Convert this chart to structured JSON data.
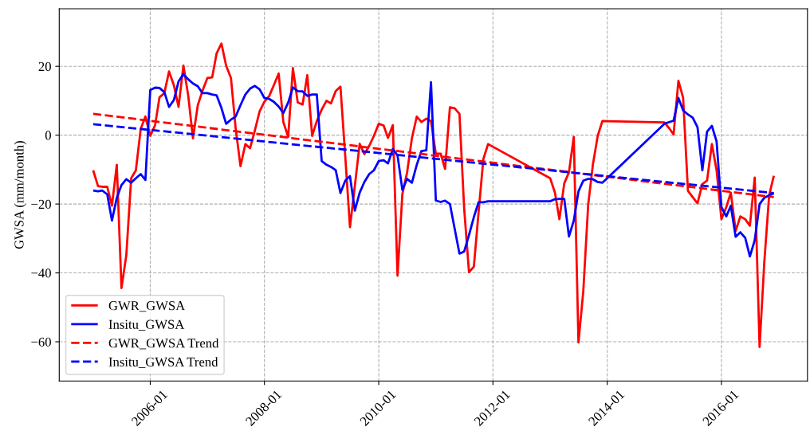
{
  "chart_data": {
    "type": "line",
    "ylabel": "GWSA (mm/month)",
    "xlim": [
      "2004-05-29",
      "2017-07-04"
    ],
    "ylim": [
      -71.4,
      36.7
    ],
    "xticks": [
      "2006-01",
      "2008-01",
      "2010-01",
      "2012-01",
      "2014-01",
      "2016-01"
    ],
    "yticks": [
      {
        "value": -60,
        "label": "−60"
      },
      {
        "value": -40,
        "label": "−40"
      },
      {
        "value": -20,
        "label": "−20"
      },
      0,
      20
    ],
    "grid": true,
    "legend": "bottom left",
    "series": [
      {
        "name": "GWR_GWSA",
        "color": "#ff0000",
        "line_style": "solid",
        "x": [
          "2005-01",
          "2005-02",
          "2005-03",
          "2005-04",
          "2005-05",
          "2005-06",
          "2005-07",
          "2005-08",
          "2005-09",
          "2005-10",
          "2005-11",
          "2005-12",
          "2006-01",
          "2006-02",
          "2006-03",
          "2006-04",
          "2006-05",
          "2006-06",
          "2006-07",
          "2006-08",
          "2006-09",
          "2006-10",
          "2006-11",
          "2006-12",
          "2007-01",
          "2007-02",
          "2007-03",
          "2007-04",
          "2007-05",
          "2007-06",
          "2007-07",
          "2007-08",
          "2007-09",
          "2007-10",
          "2007-11",
          "2007-12",
          "2008-01",
          "2008-02",
          "2008-03",
          "2008-04",
          "2008-05",
          "2008-06",
          "2008-07",
          "2008-08",
          "2008-09",
          "2008-10",
          "2008-11",
          "2008-12",
          "2009-01",
          "2009-02",
          "2009-03",
          "2009-04",
          "2009-05",
          "2009-06",
          "2009-07",
          "2009-08",
          "2009-09",
          "2009-10",
          "2009-11",
          "2009-12",
          "2010-01",
          "2010-02",
          "2010-03",
          "2010-04",
          "2010-05",
          "2010-06",
          "2010-07",
          "2010-08",
          "2010-09",
          "2010-10",
          "2010-11",
          "2010-12",
          "2011-01",
          "2011-02",
          "2011-03",
          "2011-04",
          "2011-05",
          "2011-06",
          "2011-07",
          "2011-08",
          "2011-09",
          "2011-10",
          "2011-11",
          "2011-12",
          "2013-01",
          "2013-02",
          "2013-03",
          "2013-04",
          "2013-05",
          "2013-06",
          "2013-07",
          "2013-08",
          "2013-09",
          "2013-10",
          "2013-11",
          "2013-12",
          "2015-01",
          "2015-02",
          "2015-03",
          "2015-04",
          "2015-05",
          "2015-06",
          "2015-07",
          "2015-08",
          "2015-09",
          "2015-10",
          "2015-11",
          "2015-12",
          "2016-01",
          "2016-02",
          "2016-03",
          "2016-04",
          "2016-05",
          "2016-06",
          "2016-07",
          "2016-08",
          "2016-09",
          "2016-10",
          "2016-11",
          "2016-12"
        ],
        "values": [
          -10.2,
          -14.8,
          -15,
          -15,
          -20.5,
          -8.6,
          -44.4,
          -34.8,
          -12.5,
          -10.2,
          1.8,
          5.4,
          -0.2,
          2.9,
          11,
          12.2,
          18.5,
          14.5,
          8.2,
          20.2,
          11.4,
          -0.9,
          8.7,
          12.9,
          16.6,
          16.8,
          23.7,
          26.6,
          20.2,
          16.6,
          2,
          -9,
          -2.6,
          -3.8,
          1.4,
          6.9,
          9.7,
          11.4,
          14.5,
          17.9,
          3.8,
          -0.5,
          19.5,
          9.5,
          8.9,
          17.4,
          -0.2,
          4.1,
          7.4,
          10,
          9.2,
          12.8,
          14.1,
          -6.3,
          -26.7,
          -14.8,
          -2.5,
          -5.5,
          -3.1,
          -0.2,
          3.3,
          2.8,
          -0.8,
          2.9,
          -40.8,
          -17.1,
          -10.9,
          -0.9,
          5.4,
          3.8,
          4.8,
          4.1,
          -5.4,
          -5.4,
          -9.8,
          8.1,
          7.8,
          6.2,
          -21.2,
          -39.8,
          -38.2,
          -22.5,
          -6.9,
          -2.6,
          -12.5,
          -16.8,
          -24.4,
          -14,
          -10.8,
          -0.5,
          -60.2,
          -45.2,
          -20.2,
          -8.6,
          -0.2,
          4.1,
          3.7,
          2,
          0.2,
          15.8,
          10.9,
          -16.2,
          -18,
          -19.8,
          -14.2,
          -13.2,
          -2.6,
          -10.2,
          -24.4,
          -20.9,
          -16.7,
          -27.8,
          -23.6,
          -24.4,
          -26.3,
          -12.3,
          -61.5,
          -37,
          -17.5,
          -11.8
        ]
      },
      {
        "name": "Insitu_GWSA",
        "color": "#0000ff",
        "line_style": "solid",
        "x": [
          "2005-01",
          "2005-02",
          "2005-03",
          "2005-04",
          "2005-05",
          "2005-06",
          "2005-07",
          "2005-08",
          "2005-09",
          "2005-10",
          "2005-11",
          "2005-12",
          "2006-01",
          "2006-02",
          "2006-03",
          "2006-04",
          "2006-05",
          "2006-06",
          "2006-07",
          "2006-08",
          "2006-09",
          "2006-10",
          "2006-11",
          "2006-12",
          "2007-01",
          "2007-02",
          "2007-03",
          "2007-04",
          "2007-05",
          "2007-06",
          "2007-07",
          "2007-08",
          "2007-09",
          "2007-10",
          "2007-11",
          "2007-12",
          "2008-01",
          "2008-02",
          "2008-03",
          "2008-04",
          "2008-05",
          "2008-06",
          "2008-07",
          "2008-08",
          "2008-09",
          "2008-10",
          "2008-11",
          "2008-12",
          "2009-01",
          "2009-02",
          "2009-03",
          "2009-04",
          "2009-05",
          "2009-06",
          "2009-07",
          "2009-08",
          "2009-09",
          "2009-10",
          "2009-11",
          "2009-12",
          "2010-01",
          "2010-02",
          "2010-03",
          "2010-04",
          "2010-05",
          "2010-06",
          "2010-07",
          "2010-08",
          "2010-09",
          "2010-10",
          "2010-11",
          "2010-12",
          "2011-01",
          "2011-02",
          "2011-03",
          "2011-04",
          "2011-05",
          "2011-06",
          "2011-07",
          "2011-08",
          "2011-09",
          "2011-10",
          "2011-11",
          "2011-12",
          "2013-01",
          "2013-02",
          "2013-03",
          "2013-04",
          "2013-05",
          "2013-06",
          "2013-07",
          "2013-08",
          "2013-09",
          "2013-10",
          "2013-11",
          "2013-12",
          "2014-01",
          "2015-01",
          "2015-02",
          "2015-03",
          "2015-04",
          "2015-05",
          "2015-06",
          "2015-07",
          "2015-08",
          "2015-09",
          "2015-10",
          "2015-11",
          "2015-12",
          "2016-01",
          "2016-02",
          "2016-03",
          "2016-04",
          "2016-05",
          "2016-06",
          "2016-07",
          "2016-08",
          "2016-09",
          "2016-10",
          "2016-11",
          "2016-12"
        ],
        "values": [
          -16.1,
          -16.3,
          -16.1,
          -17.2,
          -24.8,
          -18.2,
          -14.5,
          -12.8,
          -13.8,
          -12.5,
          -11.3,
          -13,
          13.1,
          13.8,
          13.7,
          12.5,
          8.2,
          10.2,
          15.6,
          17.7,
          16.2,
          15,
          14.2,
          12.2,
          12.2,
          11.8,
          11.6,
          7.9,
          3.3,
          4.5,
          5.4,
          8.7,
          11.8,
          13.5,
          14.3,
          13.3,
          10.8,
          10.5,
          9.7,
          8.3,
          6.4,
          9.5,
          13.9,
          12.8,
          12.7,
          11.4,
          11.8,
          11.8,
          -7.5,
          -8.6,
          -9.2,
          -10.2,
          -16.8,
          -13.2,
          -11.9,
          -21.9,
          -16.7,
          -13.6,
          -11.3,
          -10.2,
          -7.5,
          -7.3,
          -8.2,
          -4,
          -5.9,
          -15.9,
          -12.7,
          -13.8,
          -8.6,
          -4.6,
          -4.4,
          15.4,
          -19,
          -19.4,
          -19,
          -20,
          -27.1,
          -34.4,
          -33.8,
          -29,
          -23.8,
          -19.5,
          -19.5,
          -19.2,
          -19.2,
          -18.6,
          -18.5,
          -18.5,
          -29.4,
          -24.8,
          -16.3,
          -13.2,
          -12.7,
          -12.8,
          -13.6,
          -13.8,
          -12.5,
          3.3,
          3.8,
          4.2,
          10.8,
          7.2,
          6,
          5.1,
          2.3,
          -10.2,
          1,
          2.7,
          -1.8,
          -20.9,
          -23.6,
          -20.5,
          -29.5,
          -28.2,
          -29.8,
          -35.2,
          -30.5,
          -20,
          -18.2,
          -17.5,
          -16.9
        ]
      },
      {
        "name": "GWR_GWSA Trend",
        "color": "#ff0000",
        "line_style": "dashed",
        "x": [
          "2005-01",
          "2016-12"
        ],
        "values": [
          6.2,
          -18.0
        ]
      },
      {
        "name": "Insitu_GWSA Trend",
        "color": "#0000ff",
        "line_style": "dashed",
        "x": [
          "2005-01",
          "2016-12"
        ],
        "values": [
          3.2,
          -16.8
        ]
      }
    ]
  }
}
